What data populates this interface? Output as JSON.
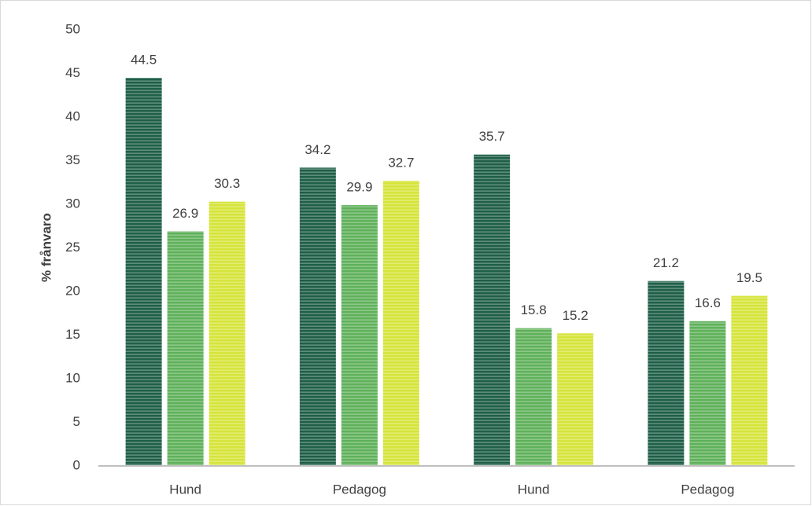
{
  "chart_data": {
    "type": "bar",
    "y_label": "% frånvaro",
    "categories": [
      "Hund",
      "Pedagog",
      "Hund",
      "Pedagog"
    ],
    "series": [
      {
        "color": "#1f5f48",
        "values": [
          44.5,
          34.2,
          35.7,
          21.2
        ]
      },
      {
        "color": "#5fb15a",
        "values": [
          26.9,
          29.9,
          15.8,
          16.6
        ]
      },
      {
        "color": "#d6e43a",
        "values": [
          30.3,
          32.7,
          15.2,
          19.5
        ]
      }
    ],
    "ylim": [
      0,
      50
    ],
    "yticks": [
      0,
      5,
      10,
      15,
      20,
      25,
      30,
      35,
      40,
      45,
      50
    ],
    "grid": false,
    "data_labels": true
  }
}
